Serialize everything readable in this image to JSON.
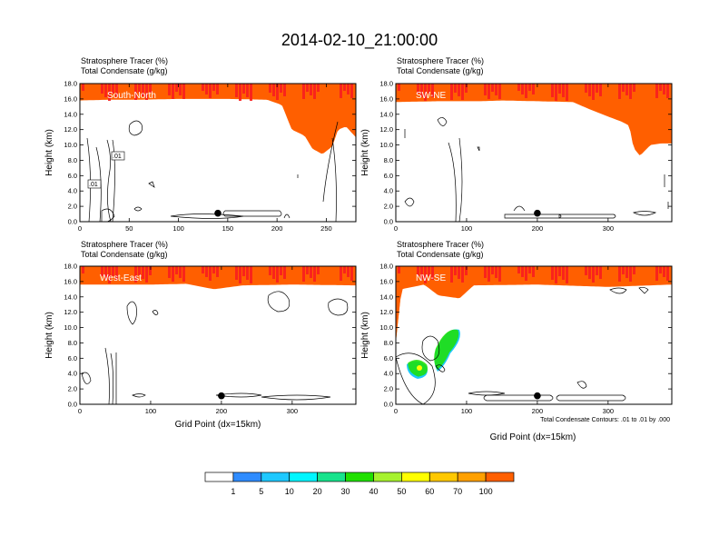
{
  "title": "2014-02-10_21:00:00",
  "panel_title_line1": "Stratosphere Tracer   (%)",
  "panel_title_line2": "Total Condensate   (g/kg)",
  "ylabel": "Height (km)",
  "xlabel": "Grid Point (dx=15km)",
  "contour_note": "Total Condensate Contours: .01 to .01 by .000",
  "colors": {
    "levels": [
      "#ffffff",
      "#2f8cff",
      "#1ec8ff",
      "#00f6ff",
      "#17e38c",
      "#20e000",
      "#a6f22e",
      "#ffff00",
      "#ffc800",
      "#ffa000",
      "#ff5f00",
      "#f81e1e"
    ],
    "ink": "#000000"
  },
  "colorbar": {
    "labels": [
      "1",
      "5",
      "10",
      "20",
      "30",
      "40",
      "50",
      "60",
      "70",
      "100"
    ]
  },
  "chart_data": [
    {
      "type": "heatmap",
      "label": "South-North",
      "xlim": [
        0,
        280
      ],
      "ylim": [
        0,
        18
      ],
      "xticks": [
        "0",
        "50",
        "100",
        "150",
        "200",
        "250"
      ],
      "yticks": [
        "0.0",
        "2.0",
        "4.0",
        "6.0",
        "8.0",
        "10.0",
        "12.0",
        "14.0",
        "16.0",
        "18.0"
      ],
      "tropopause_km": [
        [
          0,
          15.8
        ],
        [
          30,
          15.9
        ],
        [
          60,
          15.9
        ],
        [
          100,
          16.0
        ],
        [
          150,
          16.0
        ],
        [
          190,
          15.9
        ],
        [
          205,
          15.2
        ],
        [
          215,
          12.0
        ],
        [
          228,
          11.2
        ],
        [
          236,
          9.5
        ],
        [
          246,
          8.8
        ],
        [
          256,
          9.8
        ],
        [
          262,
          12.0
        ],
        [
          270,
          12.4
        ],
        [
          280,
          11.0
        ]
      ],
      "contour_labels": [
        ".01",
        ".01"
      ],
      "marker": {
        "x": 140,
        "y": 1.1
      }
    },
    {
      "type": "heatmap",
      "label": "SW-NE",
      "xlim": [
        0,
        390
      ],
      "ylim": [
        0,
        18
      ],
      "xticks": [
        "0",
        "100",
        "200",
        "300"
      ],
      "yticks": [
        "0.0",
        "2.0",
        "4.0",
        "6.0",
        "8.0",
        "10.0",
        "12.0",
        "14.0",
        "16.0",
        "18.0"
      ],
      "tropopause_km": [
        [
          0,
          15.6
        ],
        [
          60,
          15.7
        ],
        [
          120,
          15.7
        ],
        [
          150,
          15.8
        ],
        [
          250,
          15.6
        ],
        [
          270,
          14.8
        ],
        [
          300,
          13.7
        ],
        [
          320,
          13.0
        ],
        [
          330,
          12.5
        ],
        [
          336,
          9.6
        ],
        [
          345,
          8.6
        ],
        [
          360,
          10.0
        ],
        [
          375,
          10.2
        ],
        [
          390,
          10.2
        ]
      ],
      "marker": {
        "x": 200,
        "y": 1.1
      }
    },
    {
      "type": "heatmap",
      "label": "West-East",
      "xlim": [
        0,
        390
      ],
      "ylim": [
        0,
        18
      ],
      "xticks": [
        "0",
        "100",
        "200",
        "300"
      ],
      "yticks": [
        "0.0",
        "2.0",
        "4.0",
        "6.0",
        "8.0",
        "10.0",
        "12.0",
        "14.0",
        "16.0",
        "18.0"
      ],
      "tropopause_km": [
        [
          0,
          15.6
        ],
        [
          100,
          15.6
        ],
        [
          150,
          15.7
        ],
        [
          190,
          15.0
        ],
        [
          230,
          15.5
        ],
        [
          300,
          15.6
        ],
        [
          390,
          15.5
        ]
      ],
      "marker": {
        "x": 200,
        "y": 1.1
      }
    },
    {
      "type": "heatmap",
      "label": "NW-SE",
      "xlim": [
        0,
        390
      ],
      "ylim": [
        0,
        18
      ],
      "xticks": [
        "0",
        "100",
        "200",
        "300"
      ],
      "yticks": [
        "0.0",
        "2.0",
        "4.0",
        "6.0",
        "8.0",
        "10.0",
        "12.0",
        "14.0",
        "16.0",
        "18.0"
      ],
      "tropopause_km": [
        [
          0,
          8.0
        ],
        [
          8,
          15.0
        ],
        [
          40,
          15.6
        ],
        [
          60,
          14.2
        ],
        [
          90,
          13.8
        ],
        [
          110,
          15.5
        ],
        [
          200,
          15.6
        ],
        [
          300,
          15.3
        ],
        [
          390,
          15.6
        ]
      ],
      "marker": {
        "x": 200,
        "y": 1.1
      }
    }
  ]
}
